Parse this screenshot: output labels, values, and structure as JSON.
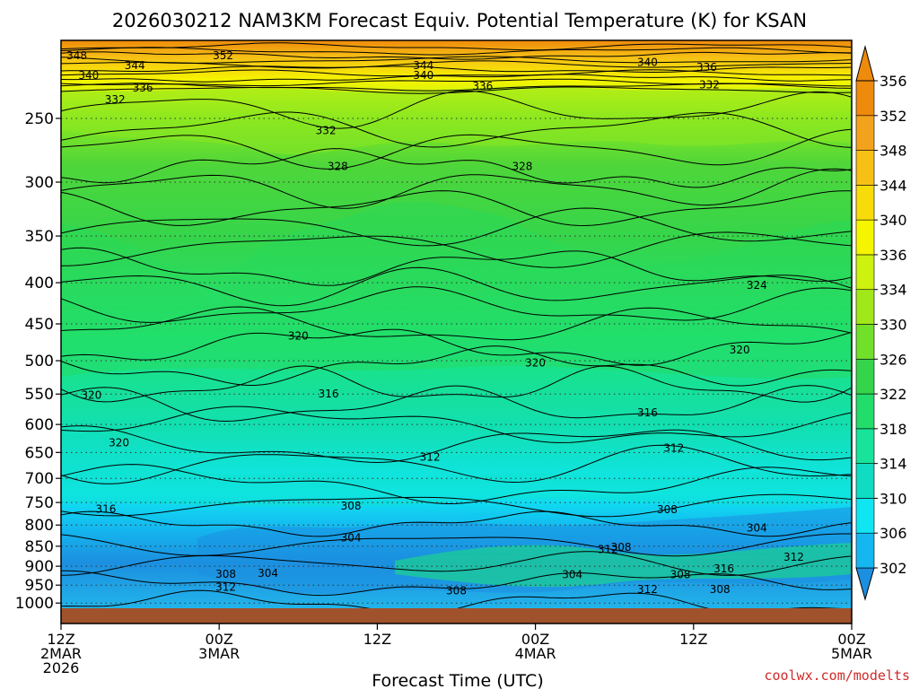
{
  "chart_data": {
    "type": "heatmap",
    "title": "2026030212 NAM3KM Forecast Equiv. Potential Temperature (K) for KSAN",
    "xlabel": "Forecast Time (UTC)",
    "ylabel": "",
    "credit": "coolwx.com/modelts",
    "x_ticks": [
      {
        "hours": 0,
        "lines": [
          "12Z",
          "2MAR",
          "2026"
        ]
      },
      {
        "hours": 12,
        "lines": [
          "00Z",
          "3MAR"
        ]
      },
      {
        "hours": 24,
        "lines": [
          "12Z"
        ]
      },
      {
        "hours": 36,
        "lines": [
          "00Z",
          "4MAR"
        ]
      },
      {
        "hours": 48,
        "lines": [
          "12Z"
        ]
      },
      {
        "hours": 60,
        "lines": [
          "00Z",
          "5MAR"
        ]
      }
    ],
    "xlim": [
      0,
      60
    ],
    "y_ticks": [
      250,
      300,
      350,
      400,
      450,
      500,
      550,
      600,
      650,
      700,
      750,
      800,
      850,
      900,
      950,
      1000
    ],
    "ylim": [
      200,
      1015
    ],
    "y_scale": "log-pressure",
    "colorbar": {
      "ticks": [
        302,
        306,
        310,
        314,
        318,
        322,
        326,
        330,
        334,
        336,
        340,
        344,
        348,
        352,
        356
      ],
      "levels": [
        {
          "value": 302,
          "color": "#1c8fe0"
        },
        {
          "value": 306,
          "color": "#14b7ef"
        },
        {
          "value": 310,
          "color": "#0fe6f2"
        },
        {
          "value": 314,
          "color": "#0fdcc2"
        },
        {
          "value": 318,
          "color": "#17e49a"
        },
        {
          "value": 322,
          "color": "#22dd6a"
        },
        {
          "value": 326,
          "color": "#35d54b"
        },
        {
          "value": 330,
          "color": "#70e02a"
        },
        {
          "value": 334,
          "color": "#a0e81a"
        },
        {
          "value": 336,
          "color": "#cdf20f"
        },
        {
          "value": 340,
          "color": "#f5f500"
        },
        {
          "value": 344,
          "color": "#f8dc0a"
        },
        {
          "value": 348,
          "color": "#f6c015"
        },
        {
          "value": 352,
          "color": "#f3a21c"
        },
        {
          "value": 356,
          "color": "#ee8a0c"
        }
      ]
    },
    "ground_color": "#a0522d",
    "contour_labels": [
      {
        "t": 1.2,
        "p": 209,
        "v": "348"
      },
      {
        "t": 12.3,
        "p": 209,
        "v": "352"
      },
      {
        "t": 5.6,
        "p": 215,
        "v": "344"
      },
      {
        "t": 27.5,
        "p": 215,
        "v": "344"
      },
      {
        "t": 44.5,
        "p": 213,
        "v": "340"
      },
      {
        "t": 49.0,
        "p": 216,
        "v": "336"
      },
      {
        "t": 2.1,
        "p": 221,
        "v": "340"
      },
      {
        "t": 27.5,
        "p": 221,
        "v": "340"
      },
      {
        "t": 6.2,
        "p": 229,
        "v": "336"
      },
      {
        "t": 32.0,
        "p": 228,
        "v": "336"
      },
      {
        "t": 49.2,
        "p": 227,
        "v": "332"
      },
      {
        "t": 4.1,
        "p": 237,
        "v": "332"
      },
      {
        "t": 20.1,
        "p": 259,
        "v": "332"
      },
      {
        "t": 21.0,
        "p": 287,
        "v": "328"
      },
      {
        "t": 35.0,
        "p": 287,
        "v": "328"
      },
      {
        "t": 52.8,
        "p": 403,
        "v": "324"
      },
      {
        "t": 18.0,
        "p": 466,
        "v": "320"
      },
      {
        "t": 51.5,
        "p": 485,
        "v": "320"
      },
      {
        "t": 36.0,
        "p": 503,
        "v": "320"
      },
      {
        "t": 2.3,
        "p": 552,
        "v": "320"
      },
      {
        "t": 20.3,
        "p": 550,
        "v": "316"
      },
      {
        "t": 44.5,
        "p": 580,
        "v": "316"
      },
      {
        "t": 4.4,
        "p": 632,
        "v": "320"
      },
      {
        "t": 28.0,
        "p": 659,
        "v": "312"
      },
      {
        "t": 46.5,
        "p": 642,
        "v": "312"
      },
      {
        "t": 3.4,
        "p": 764,
        "v": "316"
      },
      {
        "t": 22.0,
        "p": 758,
        "v": "308"
      },
      {
        "t": 46.0,
        "p": 765,
        "v": "308"
      },
      {
        "t": 52.8,
        "p": 807,
        "v": "304"
      },
      {
        "t": 22.0,
        "p": 830,
        "v": "304"
      },
      {
        "t": 41.5,
        "p": 858,
        "v": "312"
      },
      {
        "t": 42.5,
        "p": 852,
        "v": "308"
      },
      {
        "t": 55.6,
        "p": 877,
        "v": "312"
      },
      {
        "t": 50.3,
        "p": 907,
        "v": "316"
      },
      {
        "t": 15.7,
        "p": 918,
        "v": "304"
      },
      {
        "t": 12.5,
        "p": 921,
        "v": "308"
      },
      {
        "t": 12.5,
        "p": 955,
        "v": "312"
      },
      {
        "t": 38.8,
        "p": 922,
        "v": "304"
      },
      {
        "t": 47.0,
        "p": 922,
        "v": "308"
      },
      {
        "t": 44.5,
        "p": 962,
        "v": "312"
      },
      {
        "t": 50.0,
        "p": 962,
        "v": "308"
      },
      {
        "t": 30.0,
        "p": 965,
        "v": "308"
      }
    ]
  },
  "colors": {
    "contour": "#000000",
    "gridline": "#333333",
    "credit": "#d12a2a"
  }
}
